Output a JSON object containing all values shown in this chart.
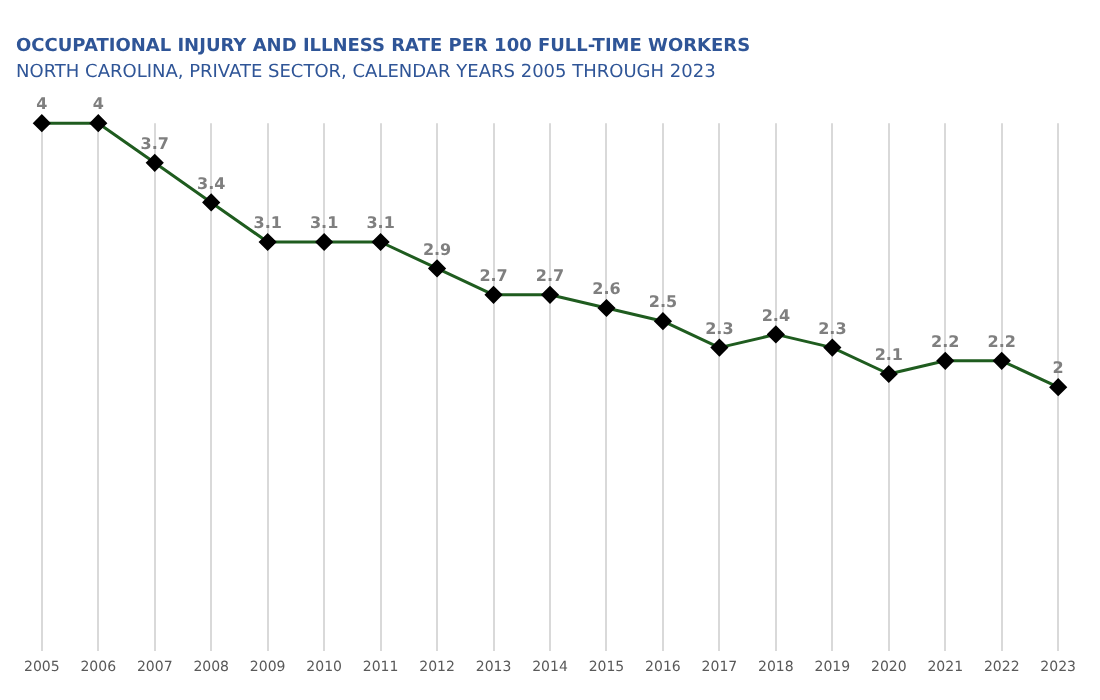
{
  "chart_data": {
    "type": "line",
    "title": "OCCUPATIONAL INJURY AND ILLNESS RATE PER 100 FULL-TIME WORKERS",
    "subtitle": "NORTH CAROLINA, PRIVATE SECTOR, CALENDAR YEARS 2005 THROUGH 2023",
    "categories": [
      "2005",
      "2006",
      "2007",
      "2008",
      "2009",
      "2010",
      "2011",
      "2012",
      "2013",
      "2014",
      "2015",
      "2016",
      "2017",
      "2018",
      "2019",
      "2020",
      "2021",
      "2022",
      "2023"
    ],
    "series": [
      {
        "color": "#1f5c1f",
        "values": [
          4,
          4,
          3.7,
          3.4,
          3.1,
          3.1,
          3.1,
          2.9,
          2.7,
          2.7,
          2.6,
          2.5,
          2.3,
          2.4,
          2.3,
          2.1,
          2.2,
          2.2,
          2
        ]
      }
    ],
    "data_labels": true,
    "marker": "diamond",
    "grid": "x",
    "legend": false,
    "tick_labels": "x"
  }
}
